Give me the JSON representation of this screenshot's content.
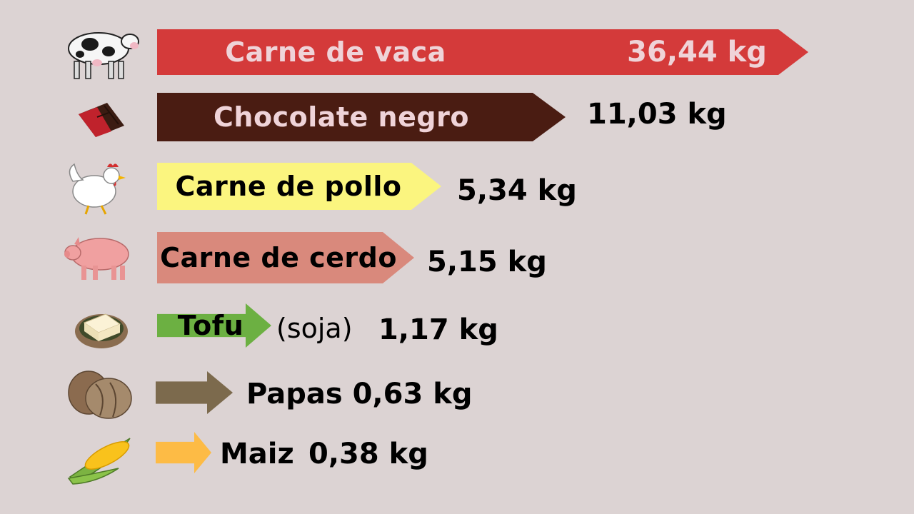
{
  "chart_data": {
    "type": "bar",
    "orientation": "horizontal",
    "unit": "kg",
    "categories": [
      "Carne de vaca",
      "Chocolate negro",
      "Carne de pollo",
      "Carne de cerdo",
      "Tofu",
      "Papas",
      "Maiz"
    ],
    "values": [
      36.44,
      11.03,
      5.34,
      5.15,
      1.17,
      0.63,
      0.38
    ],
    "value_labels": [
      "36,44 kg",
      "11,03 kg",
      "5,34 kg",
      "5,15 kg",
      "1,17 kg",
      "0,63 kg",
      "0,38 kg"
    ],
    "annotations": [
      {
        "category": "Tofu",
        "text": "(soja)"
      }
    ],
    "icons": [
      "cow-icon",
      "chocolate-bar-icon",
      "chicken-icon",
      "pig-icon",
      "tofu-icon",
      "potato-icon",
      "corn-icon"
    ],
    "colors": [
      "#d43a3a",
      "#4a1c12",
      "#fbf57f",
      "#d9897c",
      "#6cb042",
      "#7c6a4d",
      "#fdbb45"
    ],
    "label_colors": [
      "#efd3d8",
      "#efd3d8",
      "#000000",
      "#000000",
      "#000000",
      "#000000",
      "#000000"
    ],
    "title": "",
    "xlabel": "",
    "ylabel": "",
    "grid": false,
    "legend": "none"
  }
}
